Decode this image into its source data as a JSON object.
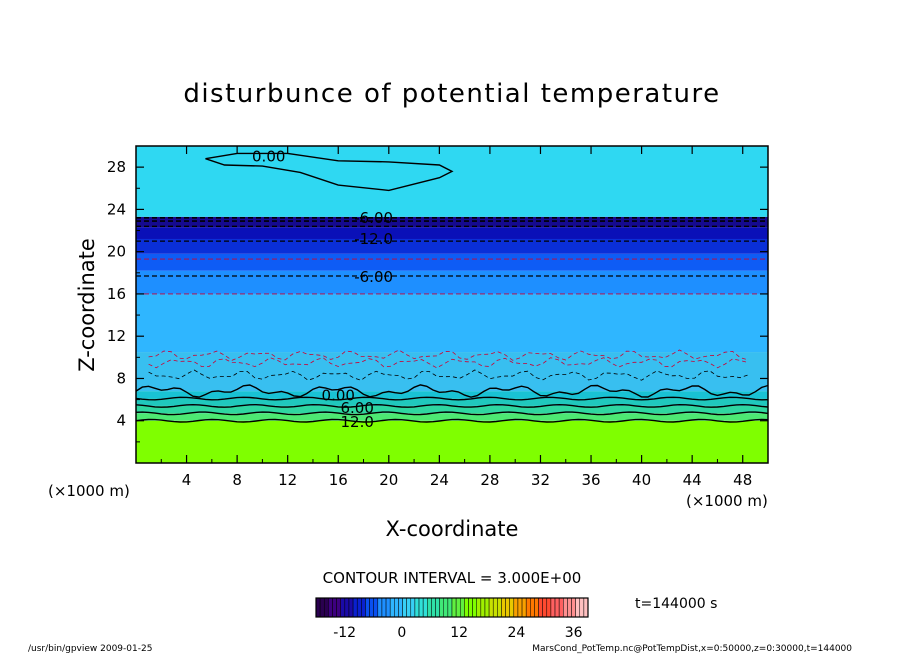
{
  "chart_data": {
    "type": "heatmap",
    "title": "disturbunce of potential temperature",
    "xlabel": "X-coordinate",
    "ylabel": "Z-coordinate",
    "x_unit": "(×1000 m)",
    "y_unit": "(×1000 m)",
    "xlim": [
      0,
      50
    ],
    "ylim": [
      0,
      30
    ],
    "x_ticks": [
      4,
      8,
      12,
      16,
      20,
      24,
      28,
      32,
      36,
      40,
      44,
      48
    ],
    "y_ticks": [
      4,
      8,
      12,
      16,
      20,
      24,
      28
    ],
    "contour_interval_label": "CONTOUR INTERVAL = 3.000E+00",
    "time_label": "t=144000 s",
    "contour_labels": [
      {
        "text": "0.00",
        "x": 10.5,
        "z": 29.0
      },
      {
        "text": "-6.00",
        "x": 18.8,
        "z": 23.2
      },
      {
        "text": "-12.0",
        "x": 18.8,
        "z": 21.2
      },
      {
        "text": "-6.00",
        "x": 18.8,
        "z": 17.6
      },
      {
        "text": "0.00",
        "x": 16.0,
        "z": 6.4
      },
      {
        "text": "6.00",
        "x": 17.5,
        "z": 5.2
      },
      {
        "text": "12.0",
        "x": 17.5,
        "z": 3.9
      }
    ],
    "bands": [
      {
        "z0": 0.0,
        "z1": 4.0,
        "value": 15,
        "color": "#7fff00"
      },
      {
        "z0": 4.0,
        "z1": 4.7,
        "value": 12,
        "color": "#4de873"
      },
      {
        "z0": 4.7,
        "z1": 5.4,
        "value": 9,
        "color": "#2fd6a0"
      },
      {
        "z0": 5.4,
        "z1": 6.1,
        "value": 6,
        "color": "#20c8bd"
      },
      {
        "z0": 6.1,
        "z1": 6.8,
        "value": 3,
        "color": "#19c2d4"
      },
      {
        "z0": 6.8,
        "z1": 10.5,
        "value": 0,
        "color": "#38bff0"
      },
      {
        "z0": 10.5,
        "z1": 16.0,
        "value": 0,
        "color": "#2fb6ff"
      },
      {
        "z0": 16.0,
        "z1": 18.2,
        "value": -3,
        "color": "#1e8fff"
      },
      {
        "z0": 18.2,
        "z1": 19.8,
        "value": -6,
        "color": "#0e5cf5"
      },
      {
        "z0": 19.8,
        "z1": 21.2,
        "value": -9,
        "color": "#0a2fd8"
      },
      {
        "z0": 21.2,
        "z1": 22.3,
        "value": -12,
        "color": "#0a10b8"
      },
      {
        "z0": 22.3,
        "z1": 23.3,
        "value": -15,
        "color": "#150a90"
      },
      {
        "z0": 23.3,
        "z1": 30.0,
        "value": 0,
        "color": "#2fd8f2"
      }
    ],
    "colorbar": {
      "ticks": [
        -12,
        0,
        12,
        24,
        36
      ],
      "vmin": -18,
      "vmax": 39,
      "colors": [
        "#2a0050",
        "#3d0080",
        "#1a0aa8",
        "#0a20d0",
        "#0a50f0",
        "#1e8fff",
        "#2fb6ff",
        "#38d0f5",
        "#30e0d8",
        "#2fe0a8",
        "#40e878",
        "#60f040",
        "#7fff00",
        "#a0f000",
        "#c8e000",
        "#e8c800",
        "#f8a000",
        "#ff7800",
        "#ff4a30",
        "#ff6060",
        "#ff9090",
        "#ffc0c0"
      ]
    }
  },
  "footer": {
    "left": "/usr/bin/gpview   2009-01-25",
    "right": "MarsCond_PotTemp.nc@PotTempDist,x=0:50000,z=0:30000,t=144000"
  }
}
